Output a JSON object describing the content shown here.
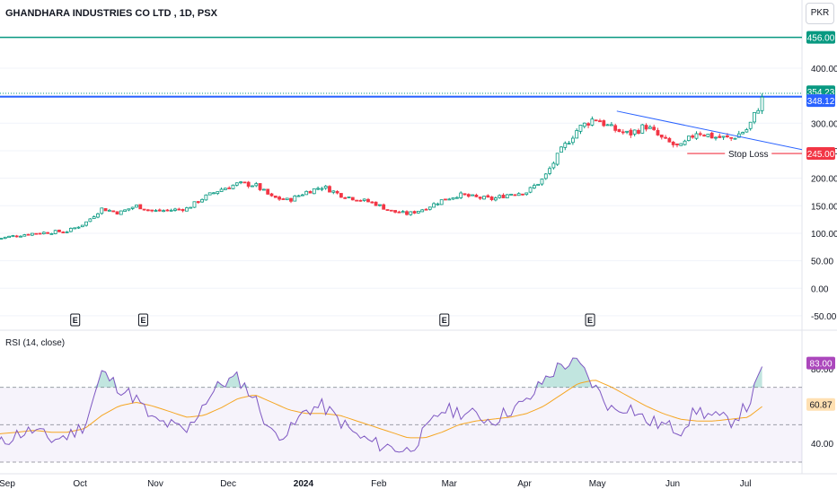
{
  "header": {
    "symbol_title": "GHANDHARA INDUSTRIES CO LTD , 1D, PSX",
    "currency": "PKR"
  },
  "rsi": {
    "title": "RSI (14, close)",
    "value_label": "83.00",
    "ma_value_label": "60.87",
    "y_ticks": [
      "80.00",
      "40.00"
    ],
    "ylim": [
      30,
      90
    ],
    "overbought": 70,
    "oversold": 30,
    "middle": 50
  },
  "earnings_marker": "E",
  "colors": {
    "up": "#089981",
    "down": "#f23645",
    "target_line": "#089981",
    "resistance_line": "#2962ff",
    "trendline": "#2962ff",
    "stop_loss": "#f23645",
    "rsi_line": "#7e57c2",
    "rsi_ma": "#f5a623",
    "price_badge": "#089981",
    "rsi_badge": "#ab47bc"
  },
  "chart_data": [
    {
      "type": "candlestick",
      "title": "GHANDHARA INDUSTRIES CO LTD , 1D, PSX",
      "y_axis_ticks": [
        400,
        350,
        300,
        250,
        200,
        150,
        100,
        50,
        0,
        -50
      ],
      "y_tick_labels": [
        "400.00",
        "300.00",
        "250.00",
        "200.00",
        "150.00",
        "100.00",
        "50.00",
        "0.00",
        "-50.00"
      ],
      "x_tick_labels": [
        "Sep",
        "Oct",
        "Nov",
        "Dec",
        "2024",
        "Feb",
        "Mar",
        "Apr",
        "May",
        "Jun",
        "Jul"
      ],
      "ylim": [
        -55,
        475
      ],
      "grid": true,
      "horizontal_lines": [
        {
          "name": "target",
          "value": 456.0,
          "label": "456.00"
        },
        {
          "name": "resistance",
          "value": 348.12,
          "label": "348.12"
        },
        {
          "name": "stop_loss",
          "value": 245.0,
          "label": "245.00",
          "annotation": "Stop Loss"
        }
      ],
      "last_price": {
        "value": 354.23,
        "label": "354.23"
      },
      "earnings_markers_at": [
        "Sep 29",
        "Oct 27",
        "Feb 28",
        "Apr 28"
      ],
      "close_series_weekly": [
        {
          "x": "Aug 28",
          "close": 90
        },
        {
          "x": "Sep 5",
          "close": 96
        },
        {
          "x": "Sep 12",
          "close": 100
        },
        {
          "x": "Sep 19",
          "close": 102
        },
        {
          "x": "Sep 26",
          "close": 104
        },
        {
          "x": "Oct 3",
          "close": 118
        },
        {
          "x": "Oct 10",
          "close": 145
        },
        {
          "x": "Oct 17",
          "close": 137
        },
        {
          "x": "Oct 24",
          "close": 150
        },
        {
          "x": "Oct 31",
          "close": 140
        },
        {
          "x": "Nov 7",
          "close": 142
        },
        {
          "x": "Nov 14",
          "close": 145
        },
        {
          "x": "Nov 21",
          "close": 165
        },
        {
          "x": "Nov 28",
          "close": 180
        },
        {
          "x": "Dec 5",
          "close": 190
        },
        {
          "x": "Dec 12",
          "close": 188
        },
        {
          "x": "Dec 19",
          "close": 165
        },
        {
          "x": "Dec 26",
          "close": 160
        },
        {
          "x": "Jan 2",
          "close": 175
        },
        {
          "x": "Jan 9",
          "close": 185
        },
        {
          "x": "Jan 16",
          "close": 170
        },
        {
          "x": "Jan 23",
          "close": 162
        },
        {
          "x": "Jan 30",
          "close": 155
        },
        {
          "x": "Feb 6",
          "close": 140
        },
        {
          "x": "Feb 13",
          "close": 135
        },
        {
          "x": "Feb 20",
          "close": 145
        },
        {
          "x": "Feb 27",
          "close": 160
        },
        {
          "x": "Mar 5",
          "close": 170
        },
        {
          "x": "Mar 12",
          "close": 165
        },
        {
          "x": "Mar 19",
          "close": 162
        },
        {
          "x": "Mar 26",
          "close": 172
        },
        {
          "x": "Apr 2",
          "close": 175
        },
        {
          "x": "Apr 9",
          "close": 200
        },
        {
          "x": "Apr 16",
          "close": 250
        },
        {
          "x": "Apr 23",
          "close": 290
        },
        {
          "x": "Apr 30",
          "close": 310
        },
        {
          "x": "May 7",
          "close": 290
        },
        {
          "x": "May 14",
          "close": 280
        },
        {
          "x": "May 21",
          "close": 295
        },
        {
          "x": "May 28",
          "close": 270
        },
        {
          "x": "Jun 4",
          "close": 255
        },
        {
          "x": "Jun 11",
          "close": 285
        },
        {
          "x": "Jun 18",
          "close": 275
        },
        {
          "x": "Jun 25",
          "close": 272
        },
        {
          "x": "Jul 2",
          "close": 290
        },
        {
          "x": "Jul 9",
          "close": 354.23
        }
      ]
    },
    {
      "type": "line",
      "title": "RSI (14, close)",
      "ylim": [
        30,
        90
      ],
      "series": [
        {
          "name": "RSI",
          "values": [
            39,
            45,
            47,
            42,
            44,
            50,
            78,
            70,
            64,
            52,
            50,
            46,
            62,
            72,
            75,
            64,
            45,
            46,
            58,
            60,
            52,
            44,
            40,
            38,
            36,
            46,
            58,
            57,
            55,
            52,
            58,
            62,
            74,
            82,
            83,
            70,
            58,
            60,
            52,
            50,
            47,
            58,
            54,
            52,
            60,
            83
          ]
        },
        {
          "values": [
            45,
            46,
            47,
            46,
            46,
            48,
            55,
            60,
            62,
            60,
            57,
            54,
            55,
            59,
            64,
            66,
            62,
            58,
            56,
            56,
            55,
            52,
            49,
            46,
            43,
            43,
            46,
            50,
            52,
            53,
            54,
            56,
            60,
            66,
            72,
            74,
            70,
            65,
            60,
            56,
            53,
            52,
            52,
            53,
            54,
            60.87
          ]
        }
      ]
    }
  ]
}
